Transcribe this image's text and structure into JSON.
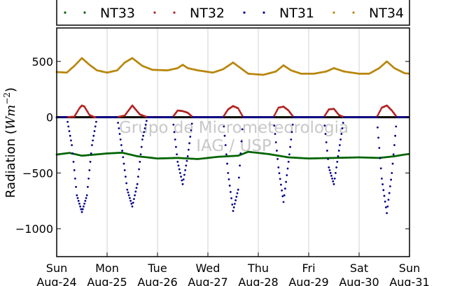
{
  "chart_data": {
    "type": "scatter",
    "title": "",
    "ylabel": "Radiation (Wm⁻²)",
    "ylabel_main": "Radiation (",
    "ylabel_unit": "Wm",
    "ylabel_exp": "−2",
    "ylabel_close": ")",
    "xlabel": "",
    "xlim": [
      0,
      7
    ],
    "ylim": [
      -1250,
      800
    ],
    "yticks": [
      {
        "value": 500,
        "label": "500"
      },
      {
        "value": 0,
        "label": "0"
      },
      {
        "value": -500,
        "label": "−500"
      },
      {
        "value": -1000,
        "label": "−1000"
      }
    ],
    "xticks": [
      {
        "value": 0,
        "day": "Sun",
        "date": "Aug-24"
      },
      {
        "value": 1,
        "day": "Mon",
        "date": "Aug-25"
      },
      {
        "value": 2,
        "day": "Tue",
        "date": "Aug-26"
      },
      {
        "value": 3,
        "day": "Wed",
        "date": "Aug-27"
      },
      {
        "value": 4,
        "day": "Thu",
        "date": "Aug-28"
      },
      {
        "value": 5,
        "day": "Fri",
        "date": "Aug-29"
      },
      {
        "value": 6,
        "day": "Sat",
        "date": "Aug-30"
      },
      {
        "value": 7,
        "day": "Sun",
        "date": "Aug-31"
      }
    ],
    "grid": "vertical",
    "legend_position": "top",
    "watermark": [
      "Grupo de Micrometeorologia",
      "IAG / USP"
    ],
    "series": [
      {
        "name": "NT33",
        "color": "#006400",
        "points": [
          [
            0,
            -335
          ],
          [
            0.25,
            -320
          ],
          [
            0.5,
            -345
          ],
          [
            0.75,
            -335
          ],
          [
            1,
            -325
          ],
          [
            1.3,
            -318
          ],
          [
            1.6,
            -350
          ],
          [
            2,
            -370
          ],
          [
            2.4,
            -365
          ],
          [
            2.8,
            -375
          ],
          [
            3.2,
            -355
          ],
          [
            3.6,
            -345
          ],
          [
            3.8,
            -310
          ],
          [
            4.2,
            -330
          ],
          [
            4.6,
            -360
          ],
          [
            5,
            -370
          ],
          [
            5.5,
            -365
          ],
          [
            6,
            -360
          ],
          [
            6.4,
            -365
          ],
          [
            6.7,
            -350
          ],
          [
            6.9,
            -335
          ],
          [
            7,
            -330
          ]
        ]
      },
      {
        "name": "NT32",
        "color": "#b22222",
        "points": [
          [
            0,
            0
          ],
          [
            0.2,
            0
          ],
          [
            0.35,
            5
          ],
          [
            0.45,
            80
          ],
          [
            0.5,
            105
          ],
          [
            0.55,
            95
          ],
          [
            0.65,
            20
          ],
          [
            0.75,
            0
          ],
          [
            1.2,
            0
          ],
          [
            1.35,
            15
          ],
          [
            1.5,
            105
          ],
          [
            1.65,
            25
          ],
          [
            1.8,
            0
          ],
          [
            2.3,
            0
          ],
          [
            2.4,
            60
          ],
          [
            2.5,
            55
          ],
          [
            2.6,
            40
          ],
          [
            2.7,
            0
          ],
          [
            3.3,
            0
          ],
          [
            3.4,
            70
          ],
          [
            3.5,
            100
          ],
          [
            3.6,
            80
          ],
          [
            3.7,
            0
          ],
          [
            4.3,
            0
          ],
          [
            4.4,
            85
          ],
          [
            4.5,
            95
          ],
          [
            4.6,
            60
          ],
          [
            4.7,
            0
          ],
          [
            5.3,
            0
          ],
          [
            5.4,
            70
          ],
          [
            5.5,
            75
          ],
          [
            5.6,
            20
          ],
          [
            5.7,
            0
          ],
          [
            6.35,
            0
          ],
          [
            6.45,
            85
          ],
          [
            6.55,
            105
          ],
          [
            6.65,
            60
          ],
          [
            6.75,
            0
          ],
          [
            7,
            0
          ]
        ]
      },
      {
        "name": "NT31",
        "color": "#00008b",
        "points": [
          [
            0,
            0
          ],
          [
            0.2,
            0
          ],
          [
            0.3,
            -250
          ],
          [
            0.4,
            -700
          ],
          [
            0.5,
            -850
          ],
          [
            0.6,
            -700
          ],
          [
            0.7,
            -250
          ],
          [
            0.8,
            0
          ],
          [
            1.2,
            0
          ],
          [
            1.3,
            -300
          ],
          [
            1.4,
            -650
          ],
          [
            1.5,
            -800
          ],
          [
            1.6,
            -600
          ],
          [
            1.7,
            -200
          ],
          [
            1.8,
            0
          ],
          [
            2.3,
            0
          ],
          [
            2.4,
            -400
          ],
          [
            2.5,
            -600
          ],
          [
            2.6,
            -350
          ],
          [
            2.7,
            0
          ],
          [
            3.3,
            0
          ],
          [
            3.4,
            -500
          ],
          [
            3.5,
            -840
          ],
          [
            3.6,
            -650
          ],
          [
            3.7,
            0
          ],
          [
            4.3,
            0
          ],
          [
            4.4,
            -450
          ],
          [
            4.5,
            -760
          ],
          [
            4.6,
            -400
          ],
          [
            4.7,
            0
          ],
          [
            5.3,
            0
          ],
          [
            5.4,
            -450
          ],
          [
            5.5,
            -600
          ],
          [
            5.6,
            -300
          ],
          [
            5.7,
            0
          ],
          [
            6.35,
            0
          ],
          [
            6.45,
            -550
          ],
          [
            6.55,
            -860
          ],
          [
            6.65,
            -500
          ],
          [
            6.75,
            0
          ],
          [
            7,
            0
          ]
        ]
      },
      {
        "name": "NT34",
        "color": "#b8860b",
        "points": [
          [
            0,
            405
          ],
          [
            0.2,
            400
          ],
          [
            0.35,
            460
          ],
          [
            0.5,
            530
          ],
          [
            0.65,
            470
          ],
          [
            0.8,
            420
          ],
          [
            1,
            400
          ],
          [
            1.2,
            420
          ],
          [
            1.35,
            490
          ],
          [
            1.5,
            530
          ],
          [
            1.7,
            460
          ],
          [
            1.9,
            425
          ],
          [
            2.2,
            420
          ],
          [
            2.4,
            440
          ],
          [
            2.5,
            470
          ],
          [
            2.6,
            440
          ],
          [
            2.8,
            420
          ],
          [
            3.1,
            400
          ],
          [
            3.3,
            430
          ],
          [
            3.5,
            490
          ],
          [
            3.65,
            440
          ],
          [
            3.8,
            390
          ],
          [
            4.1,
            380
          ],
          [
            4.35,
            410
          ],
          [
            4.5,
            465
          ],
          [
            4.65,
            420
          ],
          [
            4.85,
            390
          ],
          [
            5.1,
            390
          ],
          [
            5.35,
            410
          ],
          [
            5.5,
            440
          ],
          [
            5.7,
            410
          ],
          [
            6,
            390
          ],
          [
            6.2,
            390
          ],
          [
            6.4,
            440
          ],
          [
            6.55,
            500
          ],
          [
            6.7,
            440
          ],
          [
            6.9,
            395
          ],
          [
            7,
            390
          ]
        ]
      }
    ]
  }
}
